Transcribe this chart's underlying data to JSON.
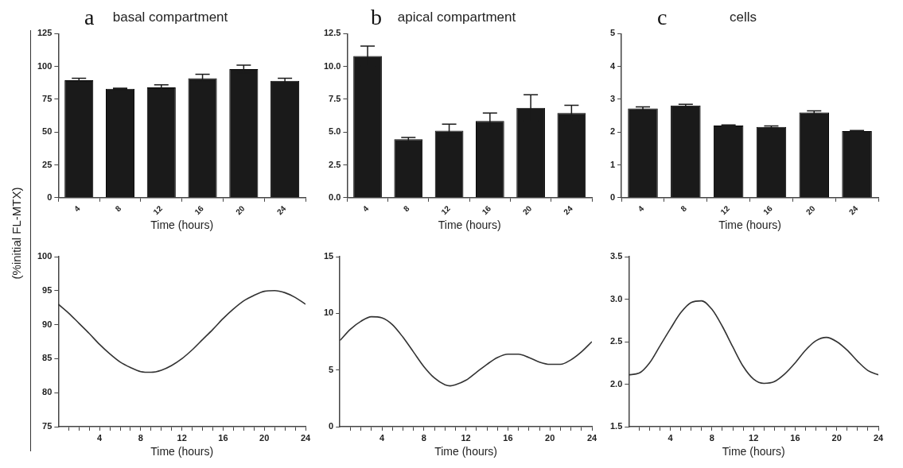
{
  "chart_data": [
    {
      "type": "bar",
      "title": "basal compartment",
      "annotations": [
        "a"
      ],
      "ylabel": "(%initial FL-MTX)",
      "xlabel": "Time (hours)",
      "categories": [
        "4",
        "8",
        "12",
        "16",
        "20",
        "24"
      ],
      "series": [
        {
          "color": "#1a1a1a",
          "values": [
            89.5,
            83,
            84,
            91,
            98,
            89
          ],
          "errors": [
            1.5,
            0.5,
            2,
            3,
            3,
            2
          ]
        }
      ],
      "ylim": [
        0,
        125
      ],
      "yticks": [
        0,
        25,
        50,
        75,
        100,
        125
      ]
    },
    {
      "type": "bar",
      "title": "apical compartment",
      "annotations": [
        "b"
      ],
      "xlabel": "Time (hours)",
      "categories": [
        "4",
        "8",
        "12",
        "16",
        "20",
        "24"
      ],
      "series": [
        {
          "color": "#1a1a1a",
          "values": [
            10.8,
            4.45,
            5.1,
            5.85,
            6.85,
            6.45
          ],
          "errors": [
            0.75,
            0.15,
            0.5,
            0.6,
            1.0,
            0.6
          ]
        }
      ],
      "ylim": [
        0,
        12.5
      ],
      "yticks": [
        {
          "value": 0,
          "label": "0.0"
        },
        {
          "value": 2.5,
          "label": "2.5"
        },
        {
          "value": 5,
          "label": "5.0"
        },
        {
          "value": 7.5,
          "label": "7.5"
        },
        {
          "value": 10,
          "label": "10.0"
        },
        {
          "value": 12.5,
          "label": "12.5"
        }
      ]
    },
    {
      "type": "bar",
      "title": "cells",
      "annotations": [
        "c"
      ],
      "xlabel": "Time (hours)",
      "categories": [
        "4",
        "8",
        "12",
        "16",
        "20",
        "24"
      ],
      "series": [
        {
          "color": "#1a1a1a",
          "values": [
            2.72,
            2.81,
            2.2,
            2.16,
            2.6,
            2.03
          ],
          "errors": [
            0.05,
            0.04,
            0.02,
            0.03,
            0.05,
            0.02
          ]
        }
      ],
      "ylim": [
        0,
        5
      ],
      "yticks": [
        0,
        1,
        2,
        3,
        4,
        5
      ]
    },
    {
      "type": "line",
      "xlabel": "Time (hours)",
      "marker": "none",
      "x": [
        0,
        1,
        2,
        3,
        4,
        5,
        6,
        7,
        8,
        9,
        10,
        11,
        12,
        13,
        14,
        15,
        16,
        17,
        18,
        19,
        20,
        21,
        22,
        23,
        24
      ],
      "series": [
        {
          "color": "#333333",
          "values": [
            93.0,
            91.7,
            90.2,
            88.7,
            87.1,
            85.7,
            84.5,
            83.7,
            83.1,
            83.0,
            83.3,
            84.0,
            85.0,
            86.3,
            87.8,
            89.3,
            90.9,
            92.3,
            93.5,
            94.3,
            94.9,
            95.0,
            94.7,
            94.0,
            93.0
          ]
        }
      ],
      "xlim": [
        0,
        24
      ],
      "xticks": [
        {
          "value": 1,
          "label": null
        },
        {
          "value": 2,
          "label": null
        },
        {
          "value": 3,
          "label": null
        },
        4,
        {
          "value": 5,
          "label": null
        },
        {
          "value": 6,
          "label": null
        },
        {
          "value": 7,
          "label": null
        },
        8,
        {
          "value": 9,
          "label": null
        },
        {
          "value": 10,
          "label": null
        },
        {
          "value": 11,
          "label": null
        },
        12,
        {
          "value": 13,
          "label": null
        },
        {
          "value": 14,
          "label": null
        },
        {
          "value": 15,
          "label": null
        },
        16,
        {
          "value": 17,
          "label": null
        },
        {
          "value": 18,
          "label": null
        },
        {
          "value": 19,
          "label": null
        },
        20,
        {
          "value": 21,
          "label": null
        },
        {
          "value": 22,
          "label": null
        },
        {
          "value": 23,
          "label": null
        },
        24
      ],
      "ylim": [
        75,
        100
      ],
      "yticks": [
        75,
        80,
        85,
        90,
        95,
        100
      ]
    },
    {
      "type": "line",
      "xlabel": "Time (hours)",
      "marker": "none",
      "x": [
        0,
        1,
        2,
        3,
        4,
        5,
        6,
        7,
        8,
        9,
        10,
        10.5,
        11,
        12,
        13,
        14,
        15,
        16,
        17,
        18,
        19,
        20,
        21,
        22,
        23,
        24
      ],
      "series": [
        {
          "color": "#333333",
          "values": [
            7.6,
            8.6,
            9.3,
            9.7,
            9.6,
            9.0,
            7.9,
            6.6,
            5.3,
            4.3,
            3.7,
            3.6,
            3.7,
            4.1,
            4.8,
            5.5,
            6.1,
            6.4,
            6.4,
            6.1,
            5.7,
            5.5,
            5.5,
            5.9,
            6.6,
            7.5
          ]
        }
      ],
      "xlim": [
        0,
        24
      ],
      "xticks": [
        {
          "value": 1,
          "label": null
        },
        {
          "value": 2,
          "label": null
        },
        {
          "value": 3,
          "label": null
        },
        4,
        {
          "value": 5,
          "label": null
        },
        {
          "value": 6,
          "label": null
        },
        {
          "value": 7,
          "label": null
        },
        8,
        {
          "value": 9,
          "label": null
        },
        {
          "value": 10,
          "label": null
        },
        {
          "value": 11,
          "label": null
        },
        12,
        {
          "value": 13,
          "label": null
        },
        {
          "value": 14,
          "label": null
        },
        {
          "value": 15,
          "label": null
        },
        16,
        {
          "value": 17,
          "label": null
        },
        {
          "value": 18,
          "label": null
        },
        {
          "value": 19,
          "label": null
        },
        20,
        {
          "value": 21,
          "label": null
        },
        {
          "value": 22,
          "label": null
        },
        {
          "value": 23,
          "label": null
        },
        24
      ],
      "ylim": [
        0,
        15
      ],
      "yticks": [
        0,
        5,
        10,
        15
      ]
    },
    {
      "type": "line",
      "xlabel": "Time (hours)",
      "marker": "none",
      "x": [
        0,
        1,
        2,
        3,
        4,
        5,
        6,
        7,
        8,
        9,
        10,
        11,
        12,
        13,
        14,
        15,
        16,
        17,
        18,
        19,
        20,
        21,
        22,
        23,
        24
      ],
      "series": [
        {
          "color": "#333333",
          "values": [
            2.11,
            2.13,
            2.25,
            2.45,
            2.65,
            2.84,
            2.96,
            2.98,
            2.88,
            2.68,
            2.44,
            2.21,
            2.06,
            2.01,
            2.03,
            2.12,
            2.25,
            2.4,
            2.51,
            2.55,
            2.5,
            2.4,
            2.27,
            2.16,
            2.11
          ]
        }
      ],
      "xlim": [
        0,
        24
      ],
      "xticks": [
        {
          "value": 1,
          "label": null
        },
        {
          "value": 2,
          "label": null
        },
        {
          "value": 3,
          "label": null
        },
        4,
        {
          "value": 5,
          "label": null
        },
        {
          "value": 6,
          "label": null
        },
        {
          "value": 7,
          "label": null
        },
        8,
        {
          "value": 9,
          "label": null
        },
        {
          "value": 10,
          "label": null
        },
        {
          "value": 11,
          "label": null
        },
        12,
        {
          "value": 13,
          "label": null
        },
        {
          "value": 14,
          "label": null
        },
        {
          "value": 15,
          "label": null
        },
        16,
        {
          "value": 17,
          "label": null
        },
        {
          "value": 18,
          "label": null
        },
        {
          "value": 19,
          "label": null
        },
        20,
        {
          "value": 21,
          "label": null
        },
        {
          "value": 22,
          "label": null
        },
        {
          "value": 23,
          "label": null
        },
        24
      ],
      "ylim": [
        1.5,
        3.5
      ],
      "yticks": [
        {
          "value": 1.5,
          "label": "1.5"
        },
        {
          "value": 2,
          "label": "2.0"
        },
        {
          "value": 2.5,
          "label": "2.5"
        },
        {
          "value": 3,
          "label": "3.0"
        },
        {
          "value": 3.5,
          "label": "3.5"
        }
      ]
    }
  ]
}
